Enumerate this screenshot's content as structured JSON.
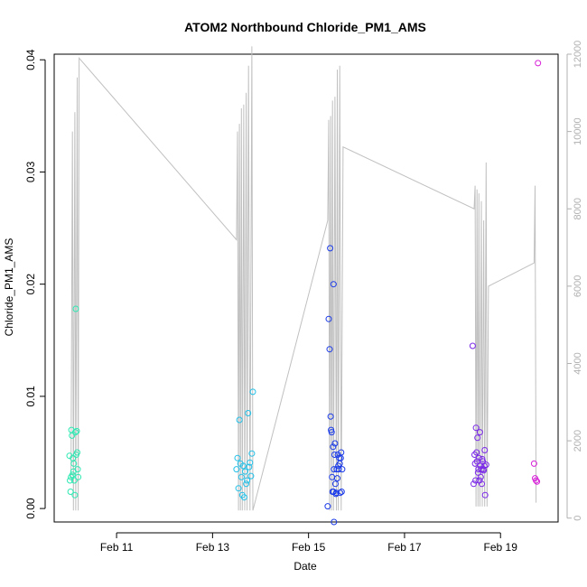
{
  "chart_data": {
    "type": "scatter",
    "title": "ATOM2 Northbound Chloride_PM1_AMS",
    "xlabel": "Date",
    "ylabel": "Chloride_PM1_AMS",
    "x_ticks": [
      {
        "label": "Feb 11",
        "value": 11
      },
      {
        "label": "Feb 13",
        "value": 13
      },
      {
        "label": "Feb 15",
        "value": 15
      },
      {
        "label": "Feb 17",
        "value": 17
      },
      {
        "label": "Feb 19",
        "value": 19
      }
    ],
    "xlim": [
      9.7,
      20.2
    ],
    "ylim": [
      -0.0012,
      0.0405
    ],
    "y_ticks": [
      "0.00",
      "0.01",
      "0.02",
      "0.03",
      "0.04"
    ],
    "y2lim": [
      -100,
      12000
    ],
    "y2_ticks": [
      "0",
      "2000",
      "4000",
      "6000",
      "8000",
      "10000",
      "12000"
    ],
    "colors": {
      "secondary_line": "#c0c0c0",
      "secondary_axis": "#b0b0b0",
      "axis": "#000000"
    },
    "secondary_series": {
      "type": "line",
      "segments": [
        [
          [
            10.05,
            1000
          ],
          [
            10.08,
            10000
          ],
          [
            10.1,
            200
          ],
          [
            10.13,
            10500
          ],
          [
            10.15,
            200
          ],
          [
            10.18,
            11400
          ],
          [
            10.2,
            200
          ],
          [
            10.22,
            11900
          ],
          [
            13.5,
            7200
          ],
          [
            13.52,
            10000
          ],
          [
            13.54,
            200
          ],
          [
            13.56,
            10200
          ],
          [
            13.58,
            200
          ],
          [
            13.6,
            10600
          ],
          [
            13.62,
            200
          ],
          [
            13.65,
            10700
          ],
          [
            13.67,
            200
          ],
          [
            13.7,
            11000
          ],
          [
            13.72,
            200
          ],
          [
            13.75,
            11700
          ],
          [
            13.78,
            200
          ],
          [
            13.82,
            12200
          ],
          [
            13.84,
            200
          ],
          [
            15.4,
            7700
          ],
          [
            15.42,
            10300
          ],
          [
            15.44,
            200
          ],
          [
            15.46,
            10400
          ],
          [
            15.48,
            200
          ],
          [
            15.5,
            10800
          ],
          [
            15.52,
            200
          ],
          [
            15.55,
            10900
          ],
          [
            15.58,
            200
          ],
          [
            15.6,
            11600
          ],
          [
            15.62,
            200
          ],
          [
            15.65,
            11700
          ],
          [
            15.68,
            200
          ],
          [
            15.72,
            9600
          ],
          [
            18.45,
            8000
          ],
          [
            18.47,
            8600
          ],
          [
            18.49,
            300
          ],
          [
            18.51,
            8500
          ],
          [
            18.53,
            300
          ],
          [
            18.55,
            8400
          ],
          [
            18.57,
            300
          ],
          [
            18.6,
            8200
          ],
          [
            18.62,
            300
          ],
          [
            18.65,
            7700
          ],
          [
            18.67,
            300
          ],
          [
            18.7,
            9200
          ],
          [
            18.72,
            300
          ],
          [
            18.75,
            6000
          ],
          [
            19.7,
            6600
          ],
          [
            19.72,
            8600
          ],
          [
            19.74,
            400
          ]
        ]
      ]
    },
    "series": [
      {
        "color": "#2ee8b2",
        "x": [
          10.02,
          10.03,
          10.04,
          10.05,
          10.06,
          10.07,
          10.08,
          10.09,
          10.1,
          10.11,
          10.12,
          10.13,
          10.14,
          10.15,
          10.16,
          10.17,
          10.18,
          10.19,
          10.2
        ],
        "y": [
          0.0047,
          0.0025,
          0.0015,
          0.0028,
          0.007,
          0.0065,
          0.003,
          0.0045,
          0.0033,
          0.004,
          0.0025,
          0.0012,
          0.0068,
          0.0178,
          0.0048,
          0.0069,
          0.005,
          0.0035,
          0.0028
        ]
      },
      {
        "color": "#22c0e8",
        "x": [
          13.5,
          13.52,
          13.54,
          13.56,
          13.58,
          13.6,
          13.62,
          13.64,
          13.66,
          13.68,
          13.7,
          13.72,
          13.74,
          13.76,
          13.78,
          13.8,
          13.82,
          13.84
        ],
        "y": [
          0.0035,
          0.0045,
          0.0018,
          0.0079,
          0.004,
          0.0028,
          0.0012,
          0.0038,
          0.001,
          0.0033,
          0.0022,
          0.0025,
          0.0085,
          0.0037,
          0.0041,
          0.0029,
          0.0049,
          0.0104
        ]
      },
      {
        "color": "#1a3ae8",
        "x": [
          15.4,
          15.42,
          15.44,
          15.45,
          15.46,
          15.47,
          15.48,
          15.49,
          15.5,
          15.51,
          15.52,
          15.53,
          15.54,
          15.55,
          15.56,
          15.57,
          15.58,
          15.59,
          15.6,
          15.61,
          15.62,
          15.63,
          15.64,
          15.65,
          15.66,
          15.67,
          15.68,
          15.69,
          15.7
        ],
        "y": [
          0.0002,
          0.0169,
          0.0142,
          0.0232,
          0.0082,
          0.007,
          0.0068,
          0.0028,
          0.0015,
          0.0055,
          0.0015,
          0.0035,
          0.0048,
          0.0058,
          0.0022,
          0.0013,
          0.0014,
          0.0035,
          0.0027,
          0.0048,
          0.0038,
          0.0035,
          0.0045,
          0.004,
          0.0014,
          0.0045,
          0.005,
          0.0015,
          0.0035
        ]
      },
      {
        "color": "#7a28e8",
        "x": [
          18.42,
          18.44,
          18.46,
          18.47,
          18.48,
          18.49,
          18.5,
          18.51,
          18.52,
          18.53,
          18.54,
          18.55,
          18.56,
          18.57,
          18.58,
          18.59,
          18.6,
          18.61,
          18.62,
          18.63,
          18.64,
          18.65,
          18.66,
          18.67,
          18.68,
          18.7
        ],
        "y": [
          0.0145,
          0.0022,
          0.0048,
          0.004,
          0.0025,
          0.0072,
          0.005,
          0.0042,
          0.0063,
          0.0032,
          0.0035,
          0.0045,
          0.0025,
          0.0068,
          0.0038,
          0.0028,
          0.0035,
          0.0022,
          0.0044,
          0.0042,
          0.0035,
          0.0034,
          0.0038,
          0.0052,
          0.0012,
          0.0039
        ]
      },
      {
        "color": "#d820d8",
        "x": [
          19.7,
          19.72,
          19.74,
          19.76,
          19.78
        ],
        "y": [
          0.004,
          0.0027,
          0.0025,
          0.0024,
          0.0397
        ]
      }
    ],
    "extra_points": [
      {
        "x": 15.52,
        "y": 0.02,
        "series": 2
      },
      {
        "x": 15.53,
        "y": -0.0012,
        "series": 2
      }
    ]
  }
}
